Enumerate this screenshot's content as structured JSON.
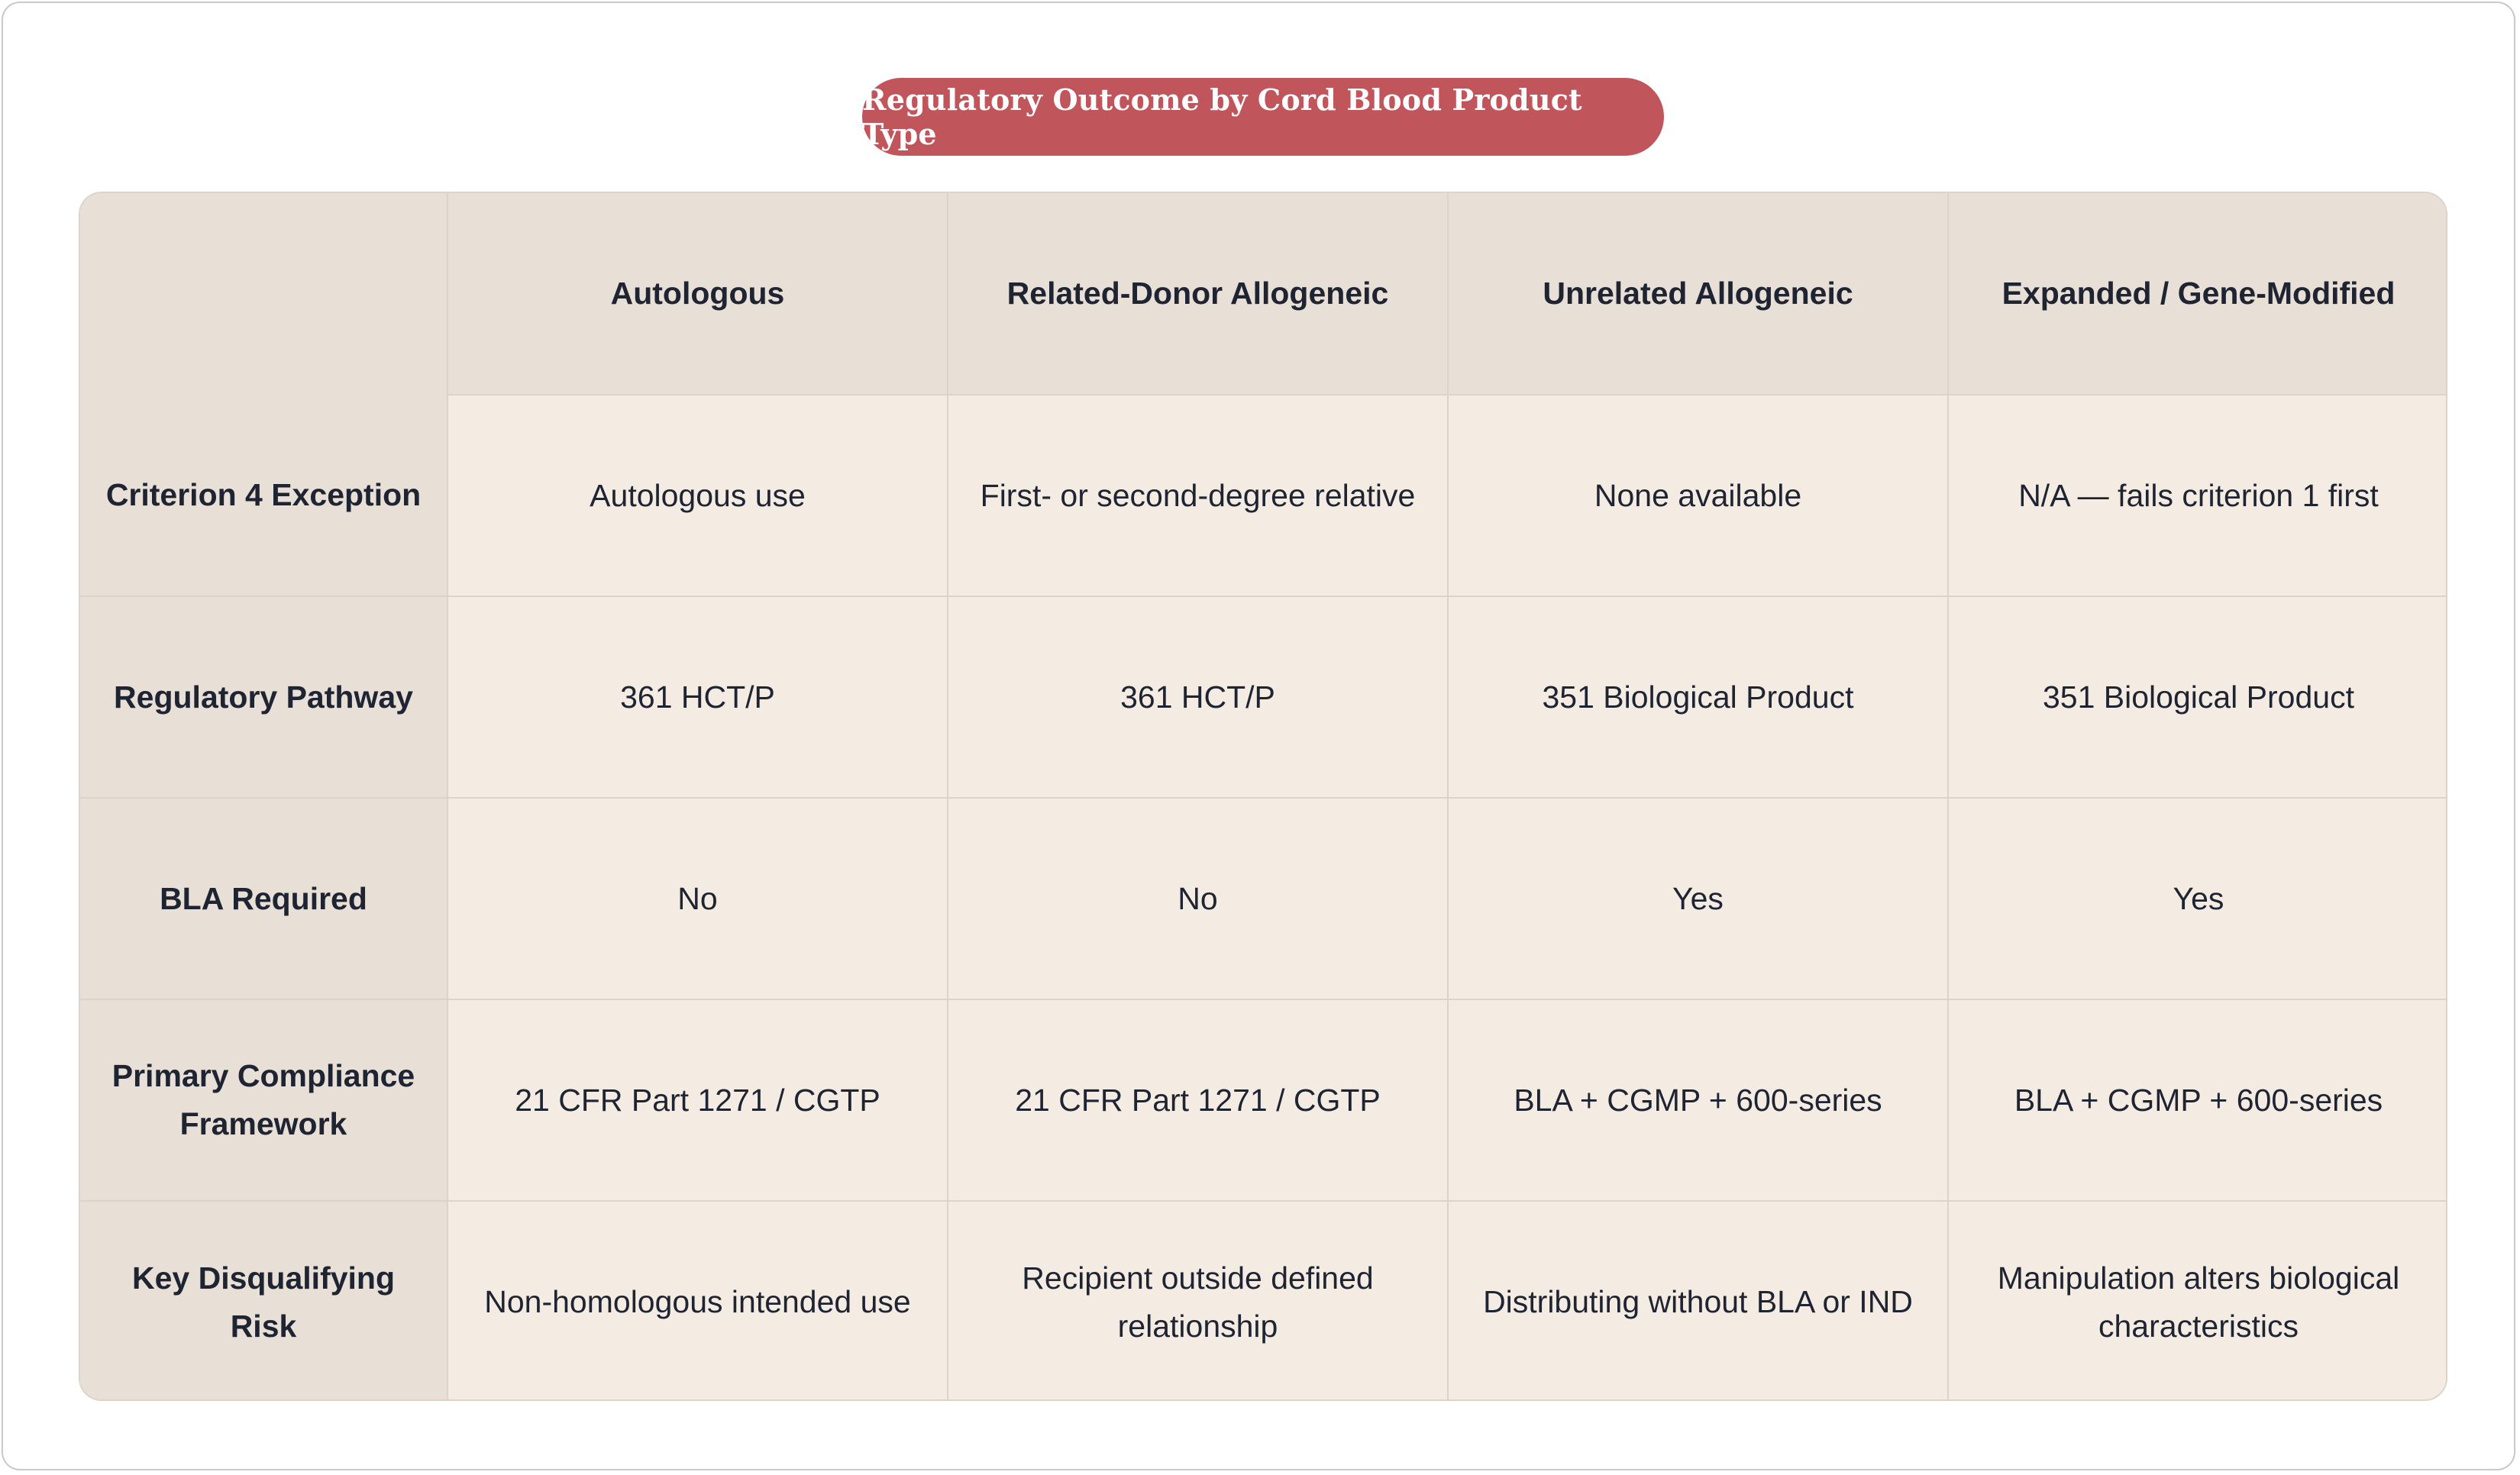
{
  "title": "Regulatory Outcome by Cord Blood Product Type",
  "columns": [
    "",
    "Autologous",
    "Related-Donor Allogeneic",
    "Unrelated Allogeneic",
    "Expanded / Gene-Modified"
  ],
  "rows": [
    {
      "label": "Criterion 4 Exception",
      "cells": [
        "Autologous use",
        "First- or second-degree relative",
        "None available",
        "N/A — fails criterion 1 first"
      ]
    },
    {
      "label": "Regulatory Pathway",
      "cells": [
        "361 HCT/P",
        "361 HCT/P",
        "351 Biological Product",
        "351 Biological Product"
      ]
    },
    {
      "label": "BLA Required",
      "cells": [
        "No",
        "No",
        "Yes",
        "Yes"
      ]
    },
    {
      "label": "Primary Compliance Framework",
      "cells": [
        "21 CFR Part 1271 / CGTP",
        "21 CFR Part 1271 / CGTP",
        "BLA + CGMP + 600-series",
        "BLA + CGMP + 600-series"
      ]
    },
    {
      "label": "Key Disqualifying Risk",
      "cells": [
        "Non-homologous intended use",
        "Recipient outside defined relationship",
        "Distributing without BLA or IND",
        "Manipulation alters biological characteristics"
      ]
    }
  ],
  "colors": {
    "title_pill": "#c1555c",
    "header_bg": "#e8dfd7",
    "cell_bg": "#f4ebe3",
    "border": "#ddd3ca",
    "text": "#1f2433"
  }
}
